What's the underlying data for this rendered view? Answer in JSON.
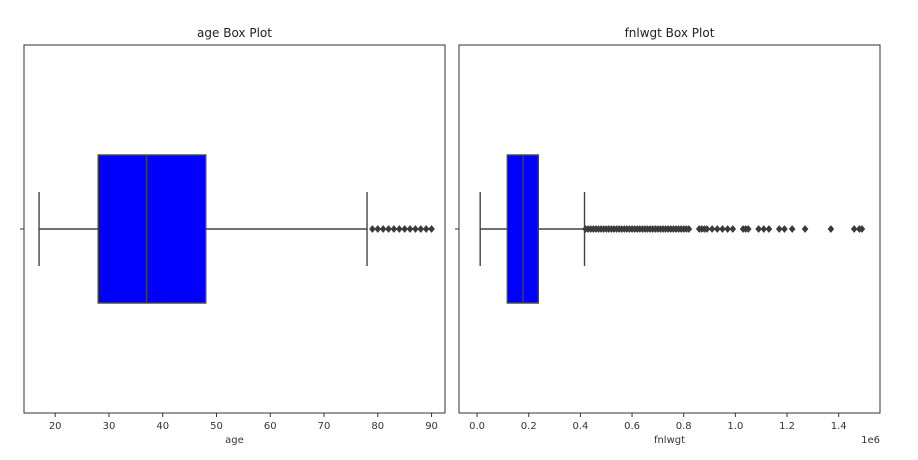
{
  "chart_data": [
    {
      "type": "box",
      "title": "age Box Plot",
      "xlabel": "age",
      "ylabel": "",
      "xlim": [
        14.2,
        92.5
      ],
      "xticks": [
        20,
        30,
        40,
        50,
        60,
        70,
        80,
        90
      ],
      "xtick_labels": [
        "20",
        "30",
        "40",
        "50",
        "60",
        "70",
        "80",
        "90"
      ],
      "offset_label": "",
      "box": {
        "whisker_low": 17,
        "q1": 28,
        "median": 37,
        "q3": 48,
        "whisker_high": 78
      },
      "outliers": [
        79,
        80,
        81,
        82,
        83,
        84,
        85,
        86,
        87,
        88,
        89,
        90
      ],
      "color": "#0000ff"
    },
    {
      "type": "box",
      "title": "fnlwgt Box Plot",
      "xlabel": "fnlwgt",
      "ylabel": "",
      "xlim": [
        -0.07,
        1.56
      ],
      "xticks": [
        0.0,
        0.2,
        0.4,
        0.6,
        0.8,
        1.0,
        1.2,
        1.4
      ],
      "xtick_labels": [
        "0.0",
        "0.2",
        "0.4",
        "0.6",
        "0.8",
        "1.0",
        "1.2",
        "1.4"
      ],
      "offset_label": "1e6",
      "box": {
        "whisker_low": 0.012,
        "q1": 0.117,
        "median": 0.178,
        "q3": 0.237,
        "whisker_high": 0.416
      },
      "outliers": [
        0.42,
        0.43,
        0.44,
        0.45,
        0.46,
        0.47,
        0.48,
        0.49,
        0.5,
        0.51,
        0.52,
        0.53,
        0.54,
        0.55,
        0.56,
        0.57,
        0.58,
        0.59,
        0.6,
        0.61,
        0.62,
        0.63,
        0.64,
        0.65,
        0.66,
        0.67,
        0.68,
        0.69,
        0.7,
        0.71,
        0.72,
        0.73,
        0.74,
        0.75,
        0.76,
        0.77,
        0.78,
        0.79,
        0.8,
        0.81,
        0.82,
        0.86,
        0.87,
        0.88,
        0.89,
        0.91,
        0.93,
        0.95,
        0.97,
        0.99,
        1.03,
        1.04,
        1.05,
        1.09,
        1.11,
        1.13,
        1.17,
        1.19,
        1.22,
        1.27,
        1.37,
        1.46,
        1.48,
        1.49
      ],
      "color": "#0000ff"
    }
  ]
}
